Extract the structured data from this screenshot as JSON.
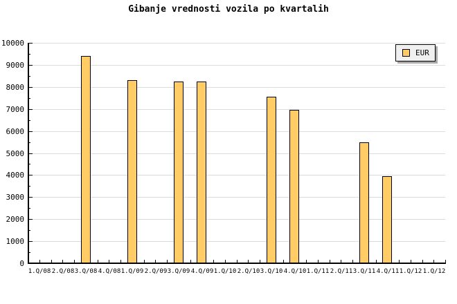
{
  "title": "Gibanje vrednosti vozila po kvartalih",
  "legend": {
    "label": "EUR"
  },
  "colors": {
    "background": "#ffffff",
    "bar_fill": "#ffcc66",
    "bar_border": "#000000",
    "gridline": "#dcdcdc",
    "axis": "#000000",
    "legend_bg": "#f0f0f0",
    "legend_shadow": "#a9a9a9",
    "text": "#000000"
  },
  "chart_data": {
    "type": "bar",
    "title": "Gibanje vrednosti vozila po kvartalih",
    "categories": [
      "1.Q/08",
      "2.Q/08",
      "3.Q/08",
      "4.Q/08",
      "1.Q/09",
      "2.Q/09",
      "3.Q/09",
      "4.Q/09",
      "1.Q/10",
      "2.Q/10",
      "3.Q/10",
      "4.Q/10",
      "1.Q/11",
      "2.Q/11",
      "3.Q/11",
      "4.Q/11",
      "1.Q/12",
      "1.Q/12"
    ],
    "series": [
      {
        "name": "EUR",
        "values": [
          null,
          null,
          9400,
          null,
          8300,
          null,
          8250,
          8250,
          null,
          null,
          7550,
          6950,
          null,
          null,
          5500,
          3950,
          null,
          null
        ]
      }
    ],
    "xlabel": "",
    "ylabel": "",
    "ylim": [
      0,
      10000
    ],
    "yticks": [
      0,
      1000,
      2000,
      3000,
      4000,
      5000,
      6000,
      7000,
      8000,
      9000,
      10000
    ],
    "yminor_interval": 500,
    "grid": true,
    "legend_position": "top-right"
  }
}
